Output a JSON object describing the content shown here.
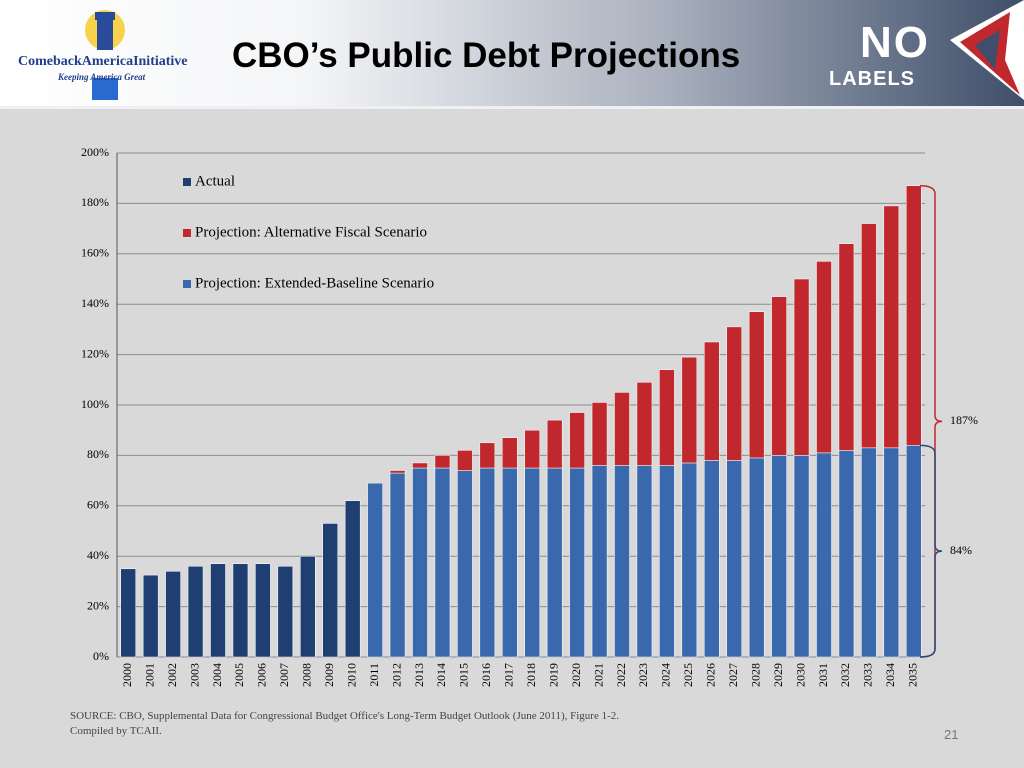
{
  "header": {
    "title": "CBO’s Public Debt Projections",
    "logo_left": "ComebackAmericaInitiative",
    "logo_left_tagline": "Keeping America Great",
    "logo_right_top": "NO",
    "logo_right_bottom": "LABELS"
  },
  "footer": {
    "source_line1": "SOURCE: CBO, Supplemental Data for Congressional Budget Office's Long-Term Budget Outlook (June 2011), Figure 1-2.",
    "source_line2": "Compiled by TCAII.",
    "page_number": "21"
  },
  "chart_data": {
    "type": "stacked_bar",
    "categories": [
      "2000",
      "2001",
      "2002",
      "2003",
      "2004",
      "2005",
      "2006",
      "2007",
      "2008",
      "2009",
      "2010",
      "2011",
      "2012",
      "2013",
      "2014",
      "2015",
      "2016",
      "2017",
      "2018",
      "2019",
      "2020",
      "2021",
      "2022",
      "2023",
      "2024",
      "2025",
      "2026",
      "2027",
      "2028",
      "2029",
      "2030",
      "2031",
      "2032",
      "2033",
      "2034",
      "2035"
    ],
    "series": [
      {
        "name": "Actual",
        "color": "#1f3f73",
        "values": [
          35,
          32.5,
          34,
          36,
          37,
          37,
          37,
          36,
          40,
          53,
          62,
          null,
          null,
          null,
          null,
          null,
          null,
          null,
          null,
          null,
          null,
          null,
          null,
          null,
          null,
          null,
          null,
          null,
          null,
          null,
          null,
          null,
          null,
          null,
          null,
          null
        ]
      },
      {
        "name": "Projection: Extended-Baseline Scenario",
        "color": "#3a68ad",
        "values": [
          null,
          null,
          null,
          null,
          null,
          null,
          null,
          null,
          null,
          null,
          null,
          69,
          73,
          75,
          75,
          74,
          75,
          75,
          75,
          75,
          75,
          76,
          76,
          76,
          76,
          77,
          78,
          78,
          79,
          80,
          80,
          81,
          82,
          83,
          83,
          84
        ]
      },
      {
        "name": "Projection: Alternative Fiscal Scenario",
        "color": "#c0282d",
        "values": [
          null,
          null,
          null,
          null,
          null,
          null,
          null,
          null,
          null,
          null,
          null,
          null,
          1,
          2,
          5,
          8,
          10,
          12,
          15,
          19,
          22,
          25,
          29,
          33,
          38,
          42,
          47,
          53,
          58,
          63,
          70,
          76,
          82,
          89,
          96,
          103
        ]
      }
    ],
    "legend_order": [
      0,
      2,
      1
    ],
    "ylim": [
      0,
      200
    ],
    "yticks": [
      {
        "value": 0,
        "label": "0%"
      },
      {
        "value": 20,
        "label": "20%"
      },
      {
        "value": 40,
        "label": "40%"
      },
      {
        "value": 60,
        "label": "60%"
      },
      {
        "value": 80,
        "label": "80%"
      },
      {
        "value": 100,
        "label": "100%"
      },
      {
        "value": 120,
        "label": "120%"
      },
      {
        "value": 140,
        "label": "140%"
      },
      {
        "value": 160,
        "label": "160%"
      },
      {
        "value": 180,
        "label": "180%"
      },
      {
        "value": 200,
        "label": "200%"
      }
    ],
    "grid": true,
    "annotations": [
      {
        "value": 187,
        "label": "187%",
        "color": "#c0282d"
      },
      {
        "value": 84,
        "label": "84%",
        "color": "#2e4a7a"
      }
    ]
  }
}
